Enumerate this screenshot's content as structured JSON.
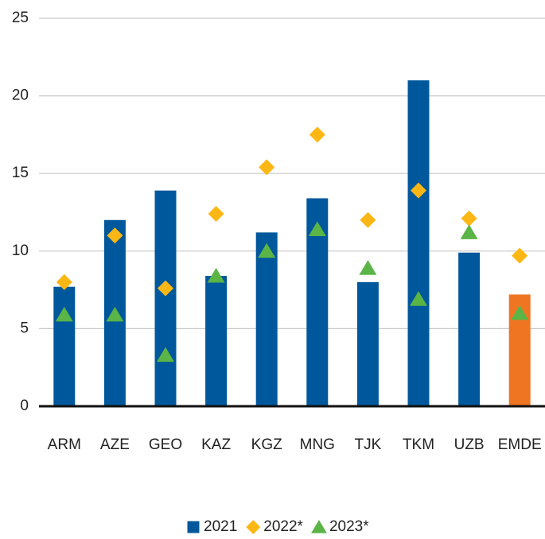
{
  "chart_data": {
    "type": "bar",
    "categories": [
      "ARM",
      "AZE",
      "GEO",
      "KAZ",
      "KGZ",
      "MNG",
      "TJK",
      "TKM",
      "UZB",
      "EMDE"
    ],
    "series": [
      {
        "name": "2021",
        "marker": "bar",
        "color": "#00589c",
        "colors": [
          "#00589c",
          "#00589c",
          "#00589c",
          "#00589c",
          "#00589c",
          "#00589c",
          "#00589c",
          "#00589c",
          "#00589c",
          "#f07522"
        ],
        "values": [
          7.7,
          12.0,
          13.9,
          8.4,
          11.2,
          13.4,
          8.0,
          21.0,
          9.9,
          7.2
        ]
      },
      {
        "name": "2022*",
        "marker": "diamond",
        "color": "#fdb714",
        "values": [
          8.0,
          11.0,
          7.6,
          12.4,
          15.4,
          17.5,
          12.0,
          13.9,
          12.1,
          9.7
        ]
      },
      {
        "name": "2023*",
        "marker": "triangle",
        "color": "#5ab546",
        "values": [
          5.9,
          5.9,
          3.3,
          8.4,
          10.0,
          11.4,
          8.9,
          6.9,
          11.2,
          6.0
        ]
      }
    ],
    "ylim": [
      0,
      25
    ],
    "yticks": [
      0,
      5,
      10,
      15,
      20,
      25
    ],
    "grid": true,
    "legend": "bottom"
  }
}
